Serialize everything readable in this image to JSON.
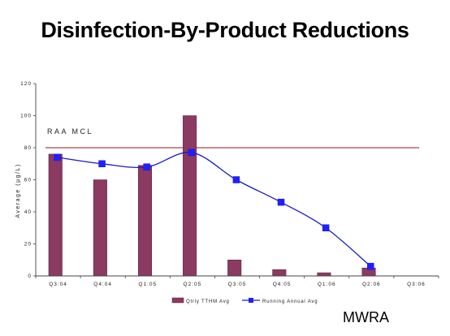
{
  "page": {
    "title": "Disinfection-By-Product Reductions",
    "footer": "MWRA"
  },
  "colors": {
    "bar": "#8b3a62",
    "bar_stroke": "#5a1e3e",
    "line": "#1a1acc",
    "marker": "#2020ff",
    "mcl_line": "#8b1a1a",
    "axis": "#444444"
  },
  "chart_data": {
    "type": "bar",
    "title": "",
    "xlabel": "",
    "ylabel": "Average (µg/L)",
    "ylim": [
      0,
      120
    ],
    "yticks": [
      0,
      20,
      40,
      60,
      80,
      100,
      120
    ],
    "grid": false,
    "legend_position": "bottom",
    "categories": [
      "Q3:04",
      "Q4:04",
      "Q1:05",
      "Q2:05",
      "Q3:05",
      "Q4:05",
      "Q1:06",
      "Q2:06",
      "Q3:06"
    ],
    "series": [
      {
        "name": "Qtrly TTHM Avg",
        "type": "bar",
        "values": [
          76,
          60,
          69,
          100,
          10,
          4,
          2,
          5,
          null
        ]
      },
      {
        "name": "Running Annual Avg",
        "type": "line",
        "values": [
          74,
          70,
          68,
          77,
          60,
          46,
          30,
          6,
          null
        ]
      }
    ],
    "annotations": [
      {
        "text": "RAA MCL",
        "y": 80
      }
    ]
  }
}
